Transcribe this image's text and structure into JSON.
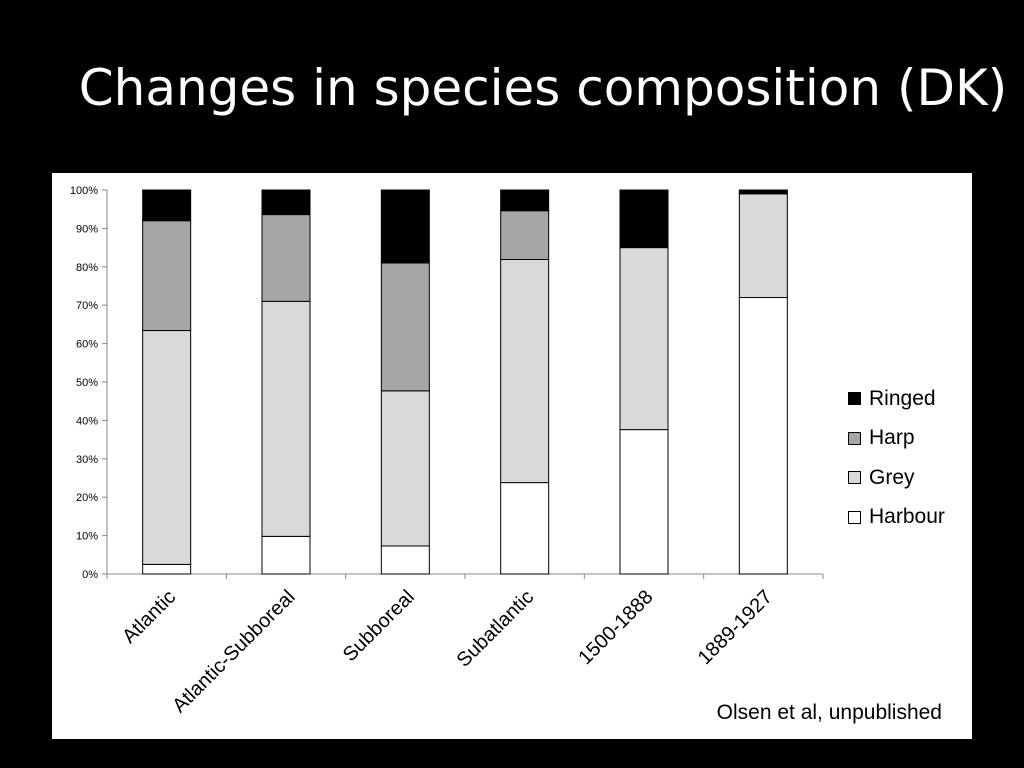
{
  "slide": {
    "title": "Changes in species composition (DK)",
    "credit": "Olsen et al, unpublished"
  },
  "chart_data": {
    "type": "bar",
    "stacked": "percent",
    "categories": [
      "Atlantic",
      "Atlantic-Subboreal",
      "Subboreal",
      "Subatlantic",
      "1500-1888",
      "1889-1927"
    ],
    "series": [
      {
        "name": "Harbour",
        "color": "#ffffff",
        "values": [
          2.5,
          9.8,
          7.3,
          23.8,
          37.6,
          72.0
        ]
      },
      {
        "name": "Grey",
        "color": "#d9d9d9",
        "values": [
          60.9,
          61.2,
          40.4,
          58.1,
          47.4,
          27.0
        ]
      },
      {
        "name": "Harp",
        "color": "#a6a6a6",
        "values": [
          28.6,
          22.6,
          33.3,
          12.7,
          0,
          0
        ]
      },
      {
        "name": "Ringed",
        "color": "#000000",
        "values": [
          8.0,
          6.4,
          19.0,
          5.4,
          15.0,
          1.0
        ]
      }
    ],
    "legend_order": [
      "Ringed",
      "Harp",
      "Grey",
      "Harbour"
    ],
    "y_ticks": [
      "0%",
      "10%",
      "20%",
      "30%",
      "40%",
      "50%",
      "60%",
      "70%",
      "80%",
      "90%",
      "100%"
    ],
    "ylim": [
      0,
      100
    ],
    "legend_position": "right",
    "grid": false
  }
}
